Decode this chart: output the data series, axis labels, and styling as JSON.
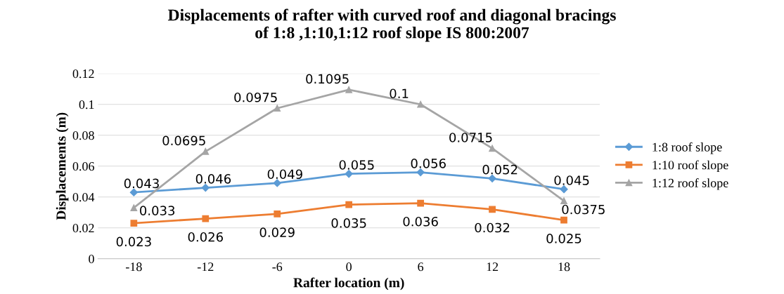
{
  "chart_data": {
    "type": "line",
    "title": "Displacements of rafter with curved roof and diagonal bracings\nof 1:8 ,1:10,1:12 roof slope IS 800:2007",
    "xlabel": "Rafter location (m)",
    "ylabel": "Displacements (m)",
    "categories": [
      "-18",
      "-12",
      "-6",
      "0",
      "6",
      "12",
      "18"
    ],
    "series": [
      {
        "name": "1:8 roof slope",
        "color": "#5b9bd5",
        "marker": "diamond",
        "values": [
          0.043,
          0.046,
          0.049,
          0.055,
          0.056,
          0.052,
          0.045
        ]
      },
      {
        "name": "1:10 roof slope",
        "color": "#ed7d31",
        "marker": "square",
        "values": [
          0.023,
          0.026,
          0.029,
          0.035,
          0.036,
          0.032,
          0.025
        ]
      },
      {
        "name": "1:12 roof slope",
        "color": "#a5a5a5",
        "marker": "triangle",
        "values": [
          0.033,
          0.0695,
          0.0975,
          0.1095,
          0.1,
          0.0715,
          0.0375
        ]
      }
    ],
    "ylim": [
      0,
      0.12
    ],
    "yticks": [
      0,
      0.02,
      0.04,
      0.06,
      0.08,
      0.1,
      0.12
    ],
    "grid": "y",
    "legend": "right",
    "data_labels": true,
    "line_style": "solid"
  }
}
